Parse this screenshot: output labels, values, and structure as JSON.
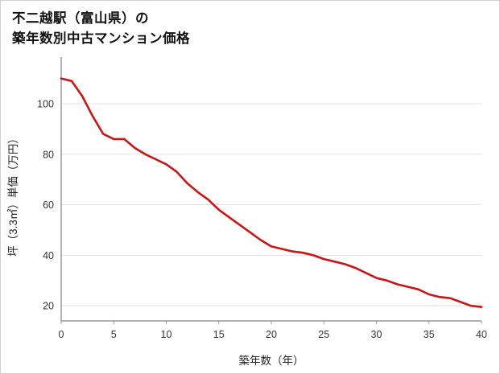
{
  "page": {
    "background": "#ffffff",
    "border_color": "#cfcfcf"
  },
  "title": {
    "line1": "不二越駅（富山県）の",
    "line2": "築年数別中古マンション価格"
  },
  "chart_data": {
    "type": "line",
    "title": "不二越駅（富山県）の築年数別中古マンション価格",
    "xlabel": "築年数（年）",
    "ylabel": "坪（3.3㎡）単価（万円）",
    "x": [
      0,
      1,
      2,
      3,
      4,
      5,
      6,
      7,
      8,
      9,
      10,
      11,
      12,
      13,
      14,
      15,
      16,
      17,
      18,
      19,
      20,
      21,
      22,
      23,
      24,
      25,
      26,
      27,
      28,
      29,
      30,
      31,
      32,
      33,
      34,
      35,
      36,
      37,
      38,
      39,
      40
    ],
    "values": [
      110,
      109,
      103,
      95,
      88,
      86,
      86,
      82.5,
      80,
      78,
      76,
      73,
      68.5,
      65,
      62,
      58,
      55,
      52,
      49,
      46,
      43.5,
      42.5,
      41.5,
      41,
      40,
      38.5,
      37.5,
      36.5,
      35,
      33,
      31,
      30,
      28.5,
      27.5,
      26.5,
      24.5,
      23.5,
      23,
      21.5,
      20,
      19.5
    ],
    "x_ticks": [
      0,
      5,
      10,
      15,
      20,
      25,
      30,
      35,
      40
    ],
    "y_ticks": [
      20,
      40,
      60,
      80,
      100
    ],
    "xlim": [
      0,
      40
    ],
    "ylim": [
      14,
      114
    ],
    "grid": "horizontal",
    "legend": "none",
    "line_color": "#cc1414",
    "axis_color": "#999999",
    "grid_color": "#e0e0e0"
  }
}
